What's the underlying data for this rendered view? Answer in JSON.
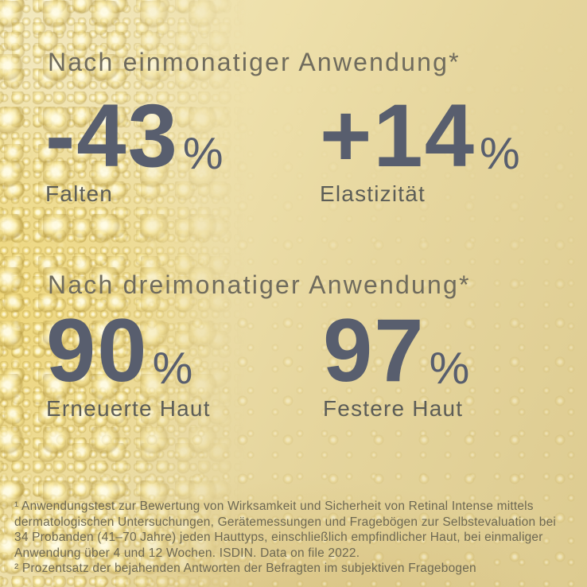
{
  "page": {
    "type": "product-claims-infographic",
    "colors": {
      "background_gold_light": "#f3e9c0",
      "background_gold_dark": "#ddcb90",
      "background_gold_saturated": "#ecce58",
      "heading_text": "#6f6b5d",
      "number_text": "#585e6e",
      "label_text": "#5c5d57",
      "footnote_text": "#6d6852"
    }
  },
  "sections": [
    {
      "heading": "Nach einmonatiger Anwendung*",
      "stats": [
        {
          "value": "-43",
          "unit": "%",
          "label": "Falten"
        },
        {
          "value": "+14",
          "unit": "%",
          "label": "Elastizität"
        }
      ]
    },
    {
      "heading": "Nach dreimonatiger Anwendung*",
      "stats": [
        {
          "value": "90",
          "unit": "%",
          "label": "Erneuerte Haut"
        },
        {
          "value": "97",
          "unit": "%",
          "label": "Festere Haut"
        }
      ]
    }
  ],
  "footnotes": [
    {
      "marker": "¹",
      "text": " Anwendungstest zur Bewertung von Wirksamkeit und Sicherheit von Retinal Intense mittels dermatologischen Untersuchungen, Gerätemessungen und Fragebögen zur Selbstevaluation bei 34 Probanden (41–70 Jahre) jeden Hauttyps, einschließlich empfindlicher Haut, bei einmaliger Anwendung über 4 und 12 Wochen. ISDIN. Data on file 2022."
    },
    {
      "marker": "²",
      "text": " Prozentsatz der bejahenden Antworten der Befragten im subjektiven Fragebogen"
    }
  ]
}
